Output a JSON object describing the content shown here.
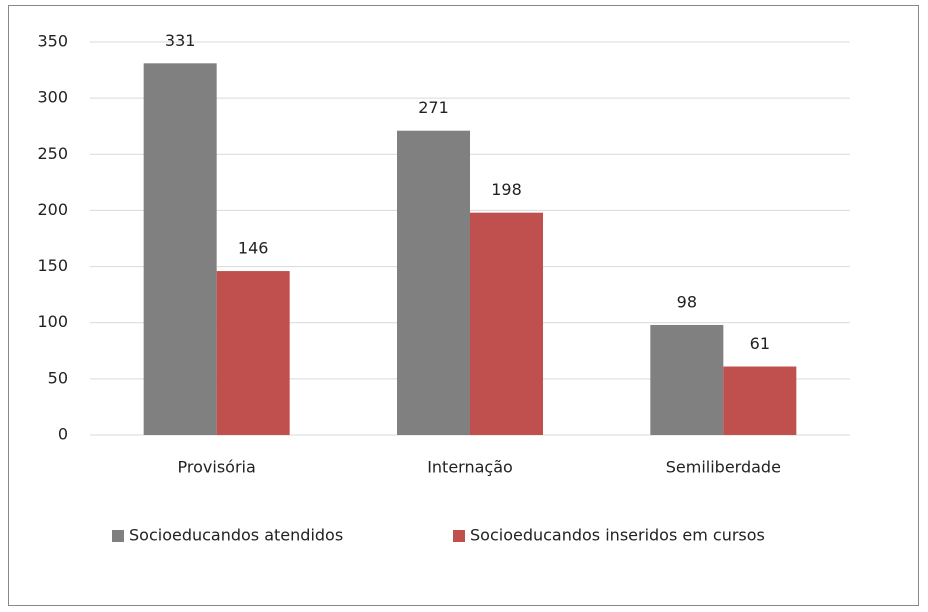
{
  "chart_data": {
    "type": "bar",
    "categories": [
      "Provisória",
      "Internação",
      "Semiliberdade"
    ],
    "series": [
      {
        "name": "Socioeducandos atendidos",
        "color": "#808080",
        "values": [
          331,
          271,
          98
        ]
      },
      {
        "name": "Socioeducandos inseridos em cursos",
        "color": "#c0504d",
        "values": [
          146,
          198,
          61
        ]
      }
    ],
    "ylim": [
      0,
      350
    ],
    "yticks": [
      0,
      50,
      100,
      150,
      200,
      250,
      300,
      350
    ],
    "grid": true,
    "legend": "bottom"
  }
}
